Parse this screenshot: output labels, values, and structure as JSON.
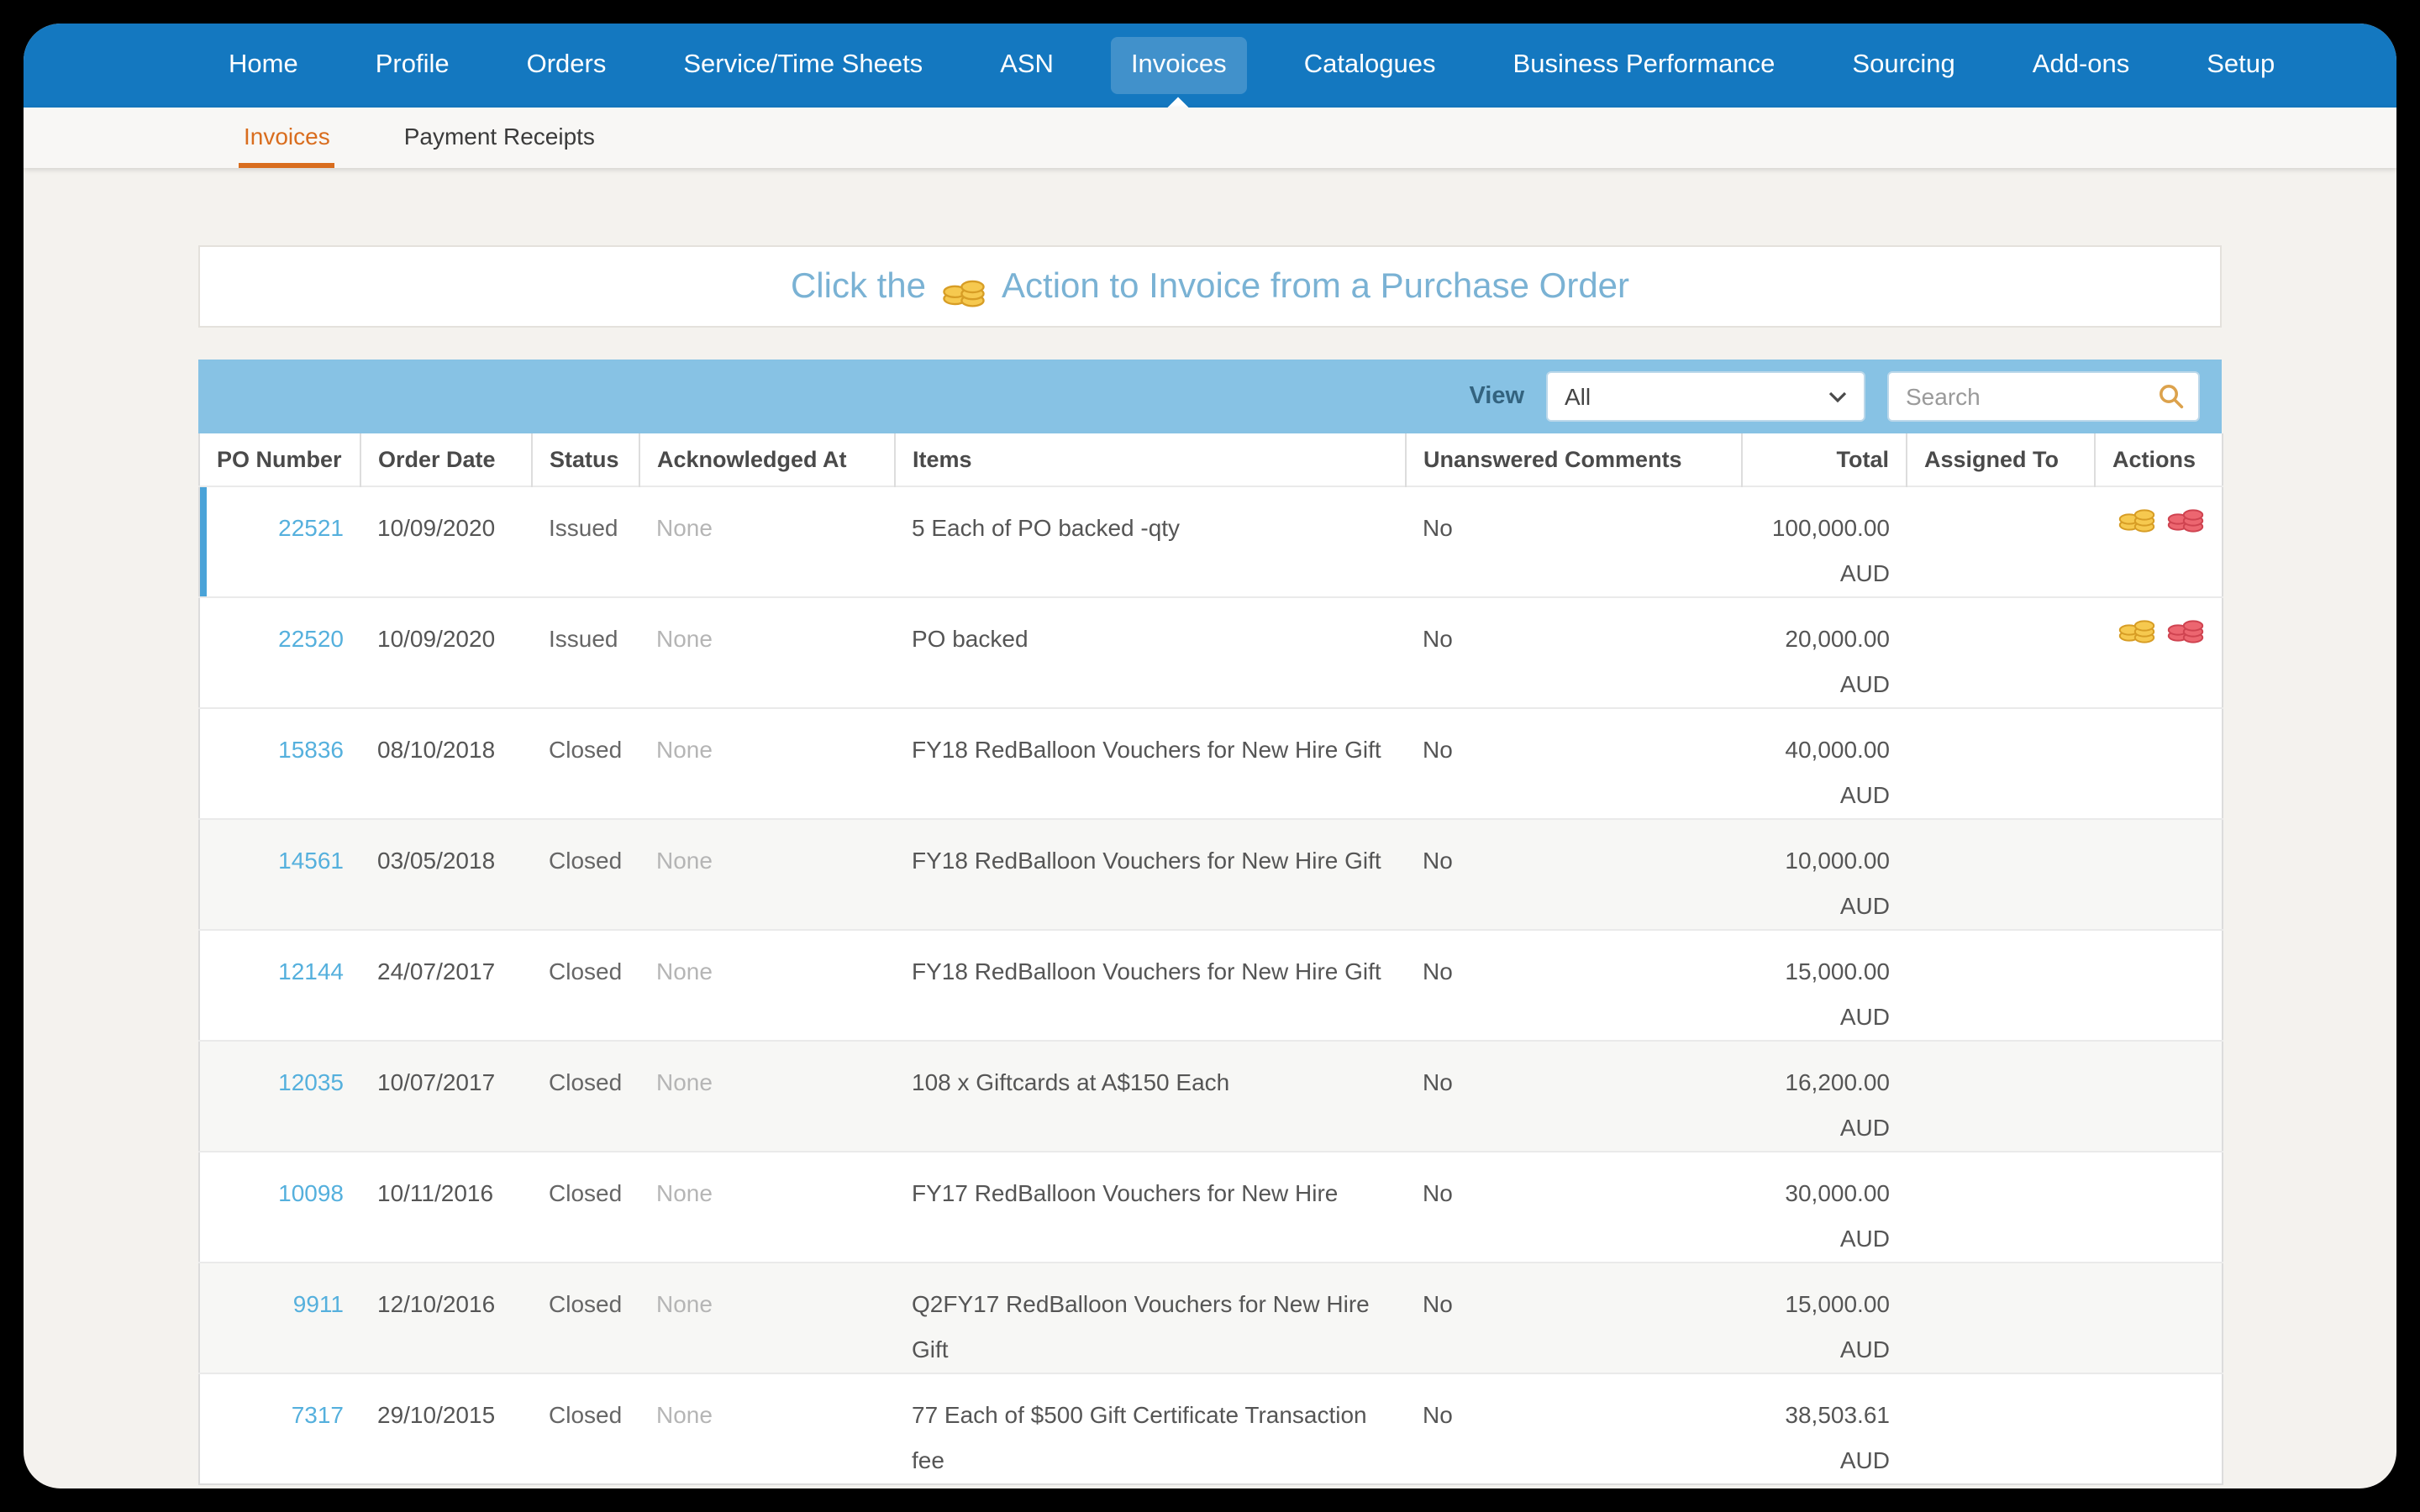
{
  "nav": {
    "items": [
      {
        "label": "Home",
        "active": false
      },
      {
        "label": "Profile",
        "active": false
      },
      {
        "label": "Orders",
        "active": false
      },
      {
        "label": "Service/Time Sheets",
        "active": false
      },
      {
        "label": "ASN",
        "active": false
      },
      {
        "label": "Invoices",
        "active": true
      },
      {
        "label": "Catalogues",
        "active": false
      },
      {
        "label": "Business Performance",
        "active": false
      },
      {
        "label": "Sourcing",
        "active": false
      },
      {
        "label": "Add-ons",
        "active": false
      },
      {
        "label": "Setup",
        "active": false
      }
    ]
  },
  "subnav": {
    "items": [
      {
        "label": "Invoices",
        "active": true
      },
      {
        "label": "Payment Receipts",
        "active": false
      }
    ]
  },
  "banner": {
    "text_before": "Click the",
    "icon": "gold-coins-icon",
    "text_after": "Action to Invoice from a Purchase Order"
  },
  "toolbar": {
    "view_label": "View",
    "view_value": "All",
    "search_placeholder": "Search",
    "search_icon": "magnifier-icon"
  },
  "table": {
    "columns": [
      "PO Number",
      "Order Date",
      "Status",
      "Acknowledged At",
      "Items",
      "Unanswered Comments",
      "Total",
      "Assigned To",
      "Actions"
    ],
    "rows": [
      {
        "po_number": "22521",
        "order_date": "10/09/2020",
        "status": "Issued",
        "acknowledged_at": "None",
        "items": "5 Each of PO backed -qty",
        "unanswered_comments": "No",
        "total_amount": "100,000.00",
        "currency": "AUD",
        "assigned_to": "",
        "has_actions": true,
        "shaded": false,
        "highlighted": true
      },
      {
        "po_number": "22520",
        "order_date": "10/09/2020",
        "status": "Issued",
        "acknowledged_at": "None",
        "items": "PO backed",
        "unanswered_comments": "No",
        "total_amount": "20,000.00",
        "currency": "AUD",
        "assigned_to": "",
        "has_actions": true,
        "shaded": false,
        "highlighted": false
      },
      {
        "po_number": "15836",
        "order_date": "08/10/2018",
        "status": "Closed",
        "acknowledged_at": "None",
        "items": "FY18 RedBalloon Vouchers for New Hire Gift",
        "unanswered_comments": "No",
        "total_amount": "40,000.00",
        "currency": "AUD",
        "assigned_to": "",
        "has_actions": false,
        "shaded": false,
        "highlighted": false
      },
      {
        "po_number": "14561",
        "order_date": "03/05/2018",
        "status": "Closed",
        "acknowledged_at": "None",
        "items": "FY18 RedBalloon Vouchers for New Hire Gift",
        "unanswered_comments": "No",
        "total_amount": "10,000.00",
        "currency": "AUD",
        "assigned_to": "",
        "has_actions": false,
        "shaded": true,
        "highlighted": false
      },
      {
        "po_number": "12144",
        "order_date": "24/07/2017",
        "status": "Closed",
        "acknowledged_at": "None",
        "items": "FY18 RedBalloon Vouchers for New Hire Gift",
        "unanswered_comments": "No",
        "total_amount": "15,000.00",
        "currency": "AUD",
        "assigned_to": "",
        "has_actions": false,
        "shaded": false,
        "highlighted": false
      },
      {
        "po_number": "12035",
        "order_date": "10/07/2017",
        "status": "Closed",
        "acknowledged_at": "None",
        "items": "108 x Giftcards at A$150 Each",
        "unanswered_comments": "No",
        "total_amount": "16,200.00",
        "currency": "AUD",
        "assigned_to": "",
        "has_actions": false,
        "shaded": true,
        "highlighted": false
      },
      {
        "po_number": "10098",
        "order_date": "10/11/2016",
        "status": "Closed",
        "acknowledged_at": "None",
        "items": "FY17 RedBalloon Vouchers for New Hire",
        "unanswered_comments": "No",
        "total_amount": "30,000.00",
        "currency": "AUD",
        "assigned_to": "",
        "has_actions": false,
        "shaded": false,
        "highlighted": false
      },
      {
        "po_number": "9911",
        "order_date": "12/10/2016",
        "status": "Closed",
        "acknowledged_at": "None",
        "items": "Q2FY17 RedBalloon Vouchers for New Hire Gift",
        "unanswered_comments": "No",
        "total_amount": "15,000.00",
        "currency": "AUD",
        "assigned_to": "",
        "has_actions": false,
        "shaded": true,
        "highlighted": false
      },
      {
        "po_number": "7317",
        "order_date": "29/10/2015",
        "status": "Closed",
        "acknowledged_at": "None",
        "items": "77 Each of $500 Gift Certificate Transaction fee",
        "unanswered_comments": "No",
        "total_amount": "38,503.61",
        "currency": "AUD",
        "assigned_to": "",
        "has_actions": false,
        "shaded": false,
        "highlighted": false
      }
    ]
  },
  "colors": {
    "nav_bar": "#1478c0",
    "nav_active_bg": "#4191cb",
    "subnav_active": "#d96d1e",
    "page_background": "#f4f2ee",
    "banner_text": "#7ab2d4",
    "toolbar_bar": "#87c2e4",
    "po_link": "#55b0dd",
    "row_highlight_bar": "#4aa3d8",
    "row_shaded": "#f7f7f5",
    "coin_gold": "#f6c94f",
    "coin_red": "#ec6670"
  }
}
